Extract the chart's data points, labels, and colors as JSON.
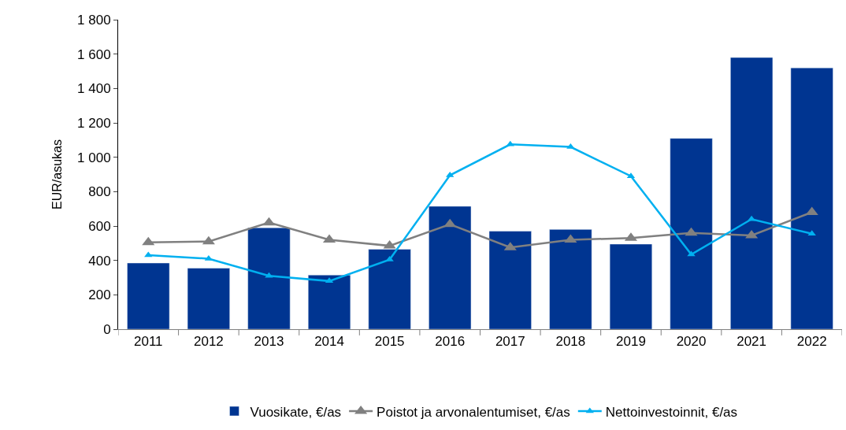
{
  "chart_data": {
    "type": "bar",
    "ylabel": "EUR/asukas",
    "categories": [
      "2011",
      "2012",
      "2013",
      "2014",
      "2015",
      "2016",
      "2017",
      "2018",
      "2019",
      "2020",
      "2021",
      "2022"
    ],
    "series": [
      {
        "name": "Vuosikate, €/as",
        "color": "#003591",
        "values": [
          385,
          355,
          590,
          315,
          465,
          715,
          570,
          580,
          495,
          1110,
          1580,
          1520
        ]
      },
      {
        "name": "Poistot ja arvonalentumiset, €/as",
        "type": "line",
        "color": "#808080",
        "marker": "triangle",
        "values": [
          505,
          510,
          620,
          520,
          485,
          610,
          475,
          520,
          530,
          560,
          545,
          680
        ]
      },
      {
        "name": "Nettoinvestoinnit, €/as",
        "type": "line",
        "color": "#00b0f0",
        "marker": "triangle",
        "values": [
          430,
          410,
          310,
          280,
          405,
          895,
          1075,
          1060,
          890,
          435,
          640,
          555
        ]
      }
    ],
    "ylim": [
      0,
      1800
    ],
    "yticks": [
      0,
      200,
      400,
      600,
      800,
      {
        "value": 1000,
        "label": "1 000"
      },
      {
        "value": 1200,
        "label": "1 200"
      },
      {
        "value": 1400,
        "label": "1 400"
      },
      {
        "value": 1600,
        "label": "1 600"
      },
      {
        "value": 1800,
        "label": "1 800"
      }
    ],
    "grid": false,
    "legend": "bottom"
  }
}
